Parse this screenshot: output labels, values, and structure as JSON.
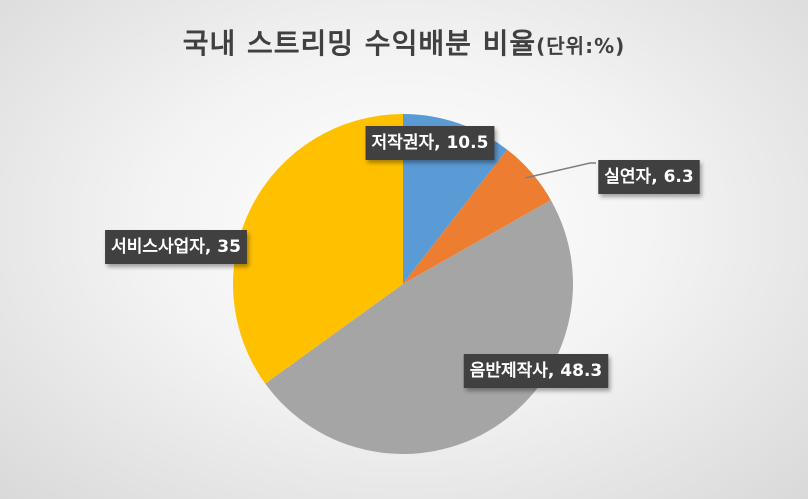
{
  "chart_data": {
    "type": "pie",
    "title": "국내 스트리밍 수익배분 비율",
    "title_unit": "(단위:%)",
    "categories": [
      "저작권자",
      "실연자",
      "음반제작사",
      "서비스사업자"
    ],
    "values": [
      10.5,
      6.3,
      48.3,
      35
    ],
    "colors": [
      "#5b9bd5",
      "#ed7d31",
      "#a5a5a5",
      "#ffc000"
    ],
    "data_labels": [
      "저작권자, 10.5",
      "실연자, 6.3",
      "음반제작사, 48.3",
      "서비스사업자, 35"
    ],
    "legend": "none"
  }
}
